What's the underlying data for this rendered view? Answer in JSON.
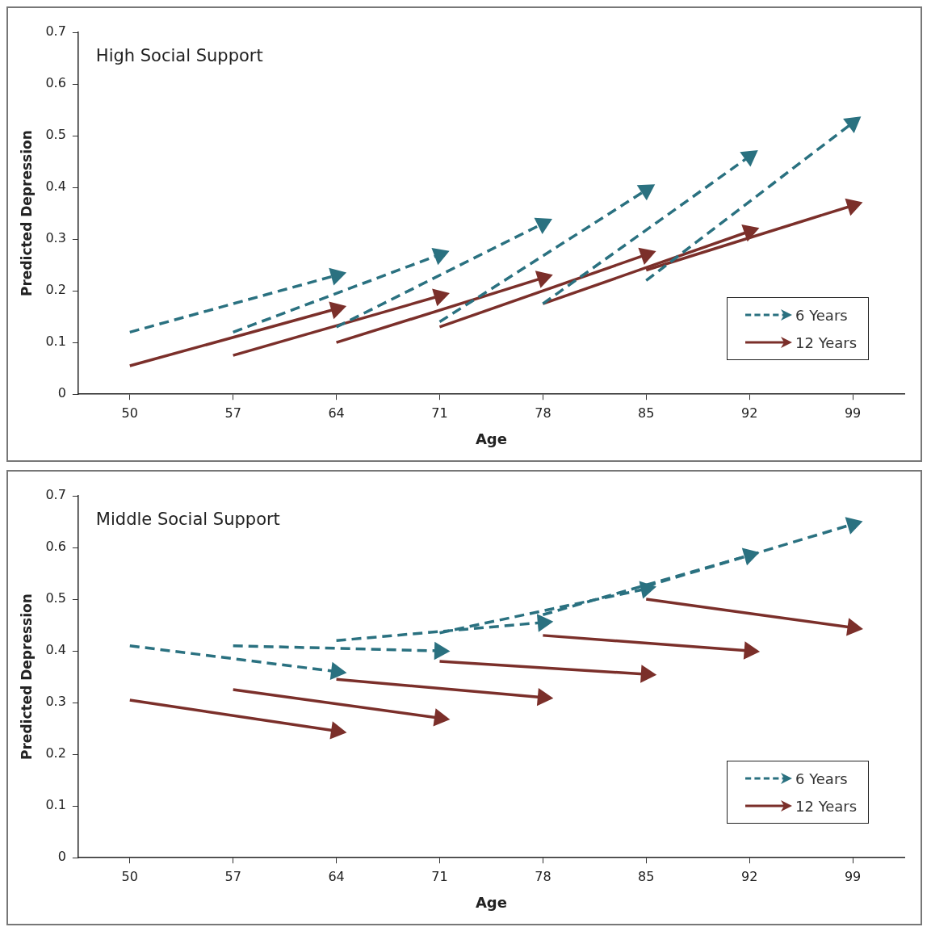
{
  "chart_data": [
    {
      "type": "line",
      "title": "High Social Support",
      "xlabel": "Age",
      "ylabel": "Predicted Depression",
      "xlim": [
        46.5,
        102.5
      ],
      "xticks": [
        50,
        57,
        64,
        71,
        78,
        85,
        92,
        99
      ],
      "ylim": [
        0,
        0.7
      ],
      "yticks": [
        0,
        0.1,
        0.2,
        0.3,
        0.4,
        0.5,
        0.6,
        0.7
      ],
      "grid": false,
      "legend": "bottom right",
      "marker": "triangle",
      "series": [
        {
          "name": "6 Years",
          "color": "#2a7180",
          "line_style": "dashed",
          "x": [
            50,
            64
          ],
          "values": [
            0.12,
            0.23
          ]
        },
        {
          "color": "#2a7180",
          "line_style": "dashed",
          "x": [
            57,
            71
          ],
          "values": [
            0.12,
            0.27
          ]
        },
        {
          "color": "#2a7180",
          "line_style": "dashed",
          "x": [
            64,
            78
          ],
          "values": [
            0.13,
            0.33
          ]
        },
        {
          "color": "#2a7180",
          "line_style": "dashed",
          "x": [
            71,
            85
          ],
          "values": [
            0.14,
            0.395
          ]
        },
        {
          "color": "#2a7180",
          "line_style": "dashed",
          "x": [
            78,
            92
          ],
          "values": [
            0.175,
            0.46
          ]
        },
        {
          "color": "#2a7180",
          "line_style": "dashed",
          "x": [
            85,
            99
          ],
          "values": [
            0.22,
            0.525
          ]
        },
        {
          "name": "12 Years",
          "color": "#7b2f2a",
          "line_style": "solid",
          "x": [
            50,
            64
          ],
          "values": [
            0.055,
            0.165
          ]
        },
        {
          "color": "#7b2f2a",
          "line_style": "solid",
          "x": [
            57,
            71
          ],
          "values": [
            0.075,
            0.19
          ]
        },
        {
          "color": "#7b2f2a",
          "line_style": "solid",
          "x": [
            64,
            78
          ],
          "values": [
            0.1,
            0.225
          ]
        },
        {
          "color": "#7b2f2a",
          "line_style": "solid",
          "x": [
            71,
            85
          ],
          "values": [
            0.13,
            0.27
          ]
        },
        {
          "color": "#7b2f2a",
          "line_style": "solid",
          "x": [
            78,
            92
          ],
          "values": [
            0.175,
            0.315
          ]
        },
        {
          "color": "#7b2f2a",
          "line_style": "solid",
          "x": [
            85,
            99
          ],
          "values": [
            0.24,
            0.365
          ]
        }
      ]
    },
    {
      "type": "line",
      "title": "Middle Social Support",
      "xlabel": "Age",
      "ylabel": "Predicted Depression",
      "xlim": [
        46.5,
        102.5
      ],
      "xticks": [
        50,
        57,
        64,
        71,
        78,
        85,
        92,
        99
      ],
      "ylim": [
        0,
        0.7
      ],
      "yticks": [
        0,
        0.1,
        0.2,
        0.3,
        0.4,
        0.5,
        0.6,
        0.7
      ],
      "grid": false,
      "legend": "bottom right",
      "marker": "triangle",
      "series": [
        {
          "name": "6 Years",
          "color": "#2a7180",
          "line_style": "dashed",
          "x": [
            50,
            64
          ],
          "values": [
            0.41,
            0.36
          ]
        },
        {
          "color": "#2a7180",
          "line_style": "dashed",
          "x": [
            57,
            71
          ],
          "values": [
            0.41,
            0.4
          ]
        },
        {
          "color": "#2a7180",
          "line_style": "dashed",
          "x": [
            64,
            78
          ],
          "values": [
            0.42,
            0.455
          ]
        },
        {
          "color": "#2a7180",
          "line_style": "dashed",
          "x": [
            71,
            85
          ],
          "values": [
            0.435,
            0.52
          ]
        },
        {
          "color": "#2a7180",
          "line_style": "dashed",
          "x": [
            78,
            92
          ],
          "values": [
            0.47,
            0.585
          ]
        },
        {
          "color": "#2a7180",
          "line_style": "dashed",
          "x": [
            85,
            99
          ],
          "values": [
            0.525,
            0.645
          ]
        },
        {
          "name": "12 Years",
          "color": "#7b2f2a",
          "line_style": "solid",
          "x": [
            50,
            64
          ],
          "values": [
            0.305,
            0.245
          ]
        },
        {
          "color": "#7b2f2a",
          "line_style": "solid",
          "x": [
            57,
            71
          ],
          "values": [
            0.325,
            0.27
          ]
        },
        {
          "color": "#7b2f2a",
          "line_style": "solid",
          "x": [
            64,
            78
          ],
          "values": [
            0.345,
            0.31
          ]
        },
        {
          "color": "#7b2f2a",
          "line_style": "solid",
          "x": [
            71,
            85
          ],
          "values": [
            0.38,
            0.355
          ]
        },
        {
          "color": "#7b2f2a",
          "line_style": "solid",
          "x": [
            78,
            92
          ],
          "values": [
            0.43,
            0.4
          ]
        },
        {
          "color": "#7b2f2a",
          "line_style": "solid",
          "x": [
            85,
            99
          ],
          "values": [
            0.5,
            0.445
          ]
        }
      ]
    }
  ]
}
